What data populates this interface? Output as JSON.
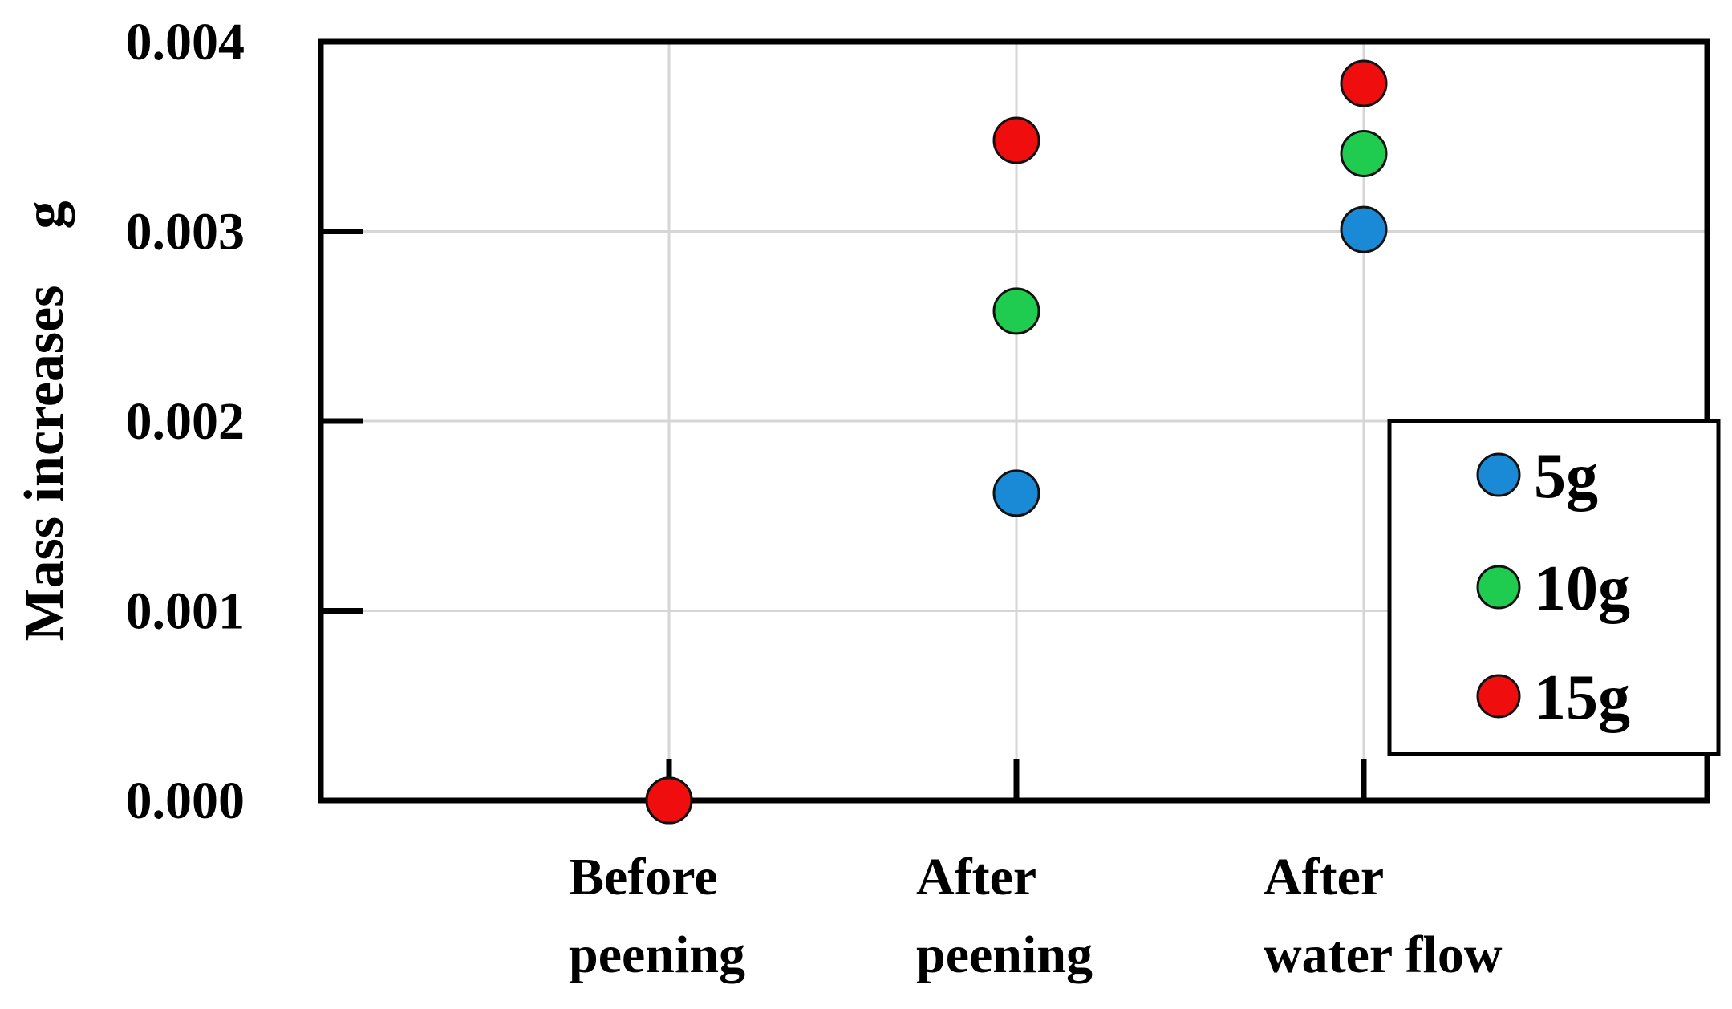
{
  "chart_data": {
    "type": "scatter",
    "title": "",
    "xlabel": "",
    "ylabel": "Mass increases　g",
    "categories": [
      "Before peening",
      "After peening",
      "After water flow"
    ],
    "category_lines": [
      [
        "Before",
        "peening"
      ],
      [
        "After",
        "peening"
      ],
      [
        "After",
        "water flow"
      ]
    ],
    "ylim": [
      0,
      0.004
    ],
    "yticks": [
      0,
      0.001,
      0.002,
      0.003,
      0.004
    ],
    "ytick_labels": [
      "0.000",
      "0.001",
      "0.002",
      "0.003",
      "0.004"
    ],
    "grid": true,
    "legend_position": "right",
    "series": [
      {
        "name": "5g",
        "color": "#1b8ad6",
        "values": [
          0,
          0.00162,
          0.00301
        ]
      },
      {
        "name": "10g",
        "color": "#1fcc50",
        "values": [
          0,
          0.00258,
          0.00341
        ]
      },
      {
        "name": "15g",
        "color": "#f00d0d",
        "values": [
          0,
          0.00348,
          0.00378
        ]
      }
    ]
  }
}
